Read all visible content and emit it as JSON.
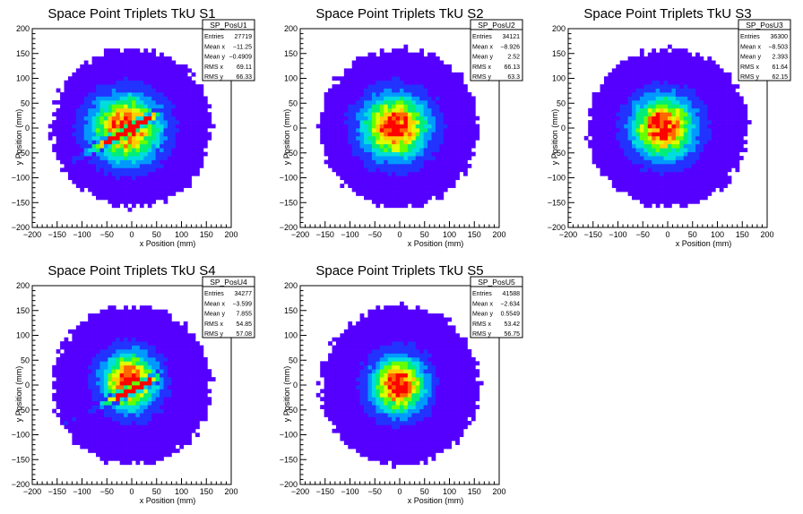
{
  "chart_data": [
    {
      "type": "heatmap",
      "title": "Space Point Triplets TkU S1",
      "xlabel": "x Position (mm)",
      "ylabel": "y Position (mm)",
      "xlim": [
        -200,
        200
      ],
      "ylim": [
        -200,
        200
      ],
      "xticks": [
        "−200",
        "−150",
        "−100",
        "−50",
        "0",
        "50",
        "100",
        "150",
        "200"
      ],
      "yticks": [
        "−200",
        "−150",
        "−100",
        "−50",
        "0",
        "50",
        "100",
        "150",
        "200"
      ],
      "stats": {
        "name": "SP_PosU1",
        "rows": [
          {
            "label": "Entries",
            "value": "27719"
          },
          {
            "label": "Mean x",
            "value": "−11.25"
          },
          {
            "label": "Mean y",
            "value": "−0.4909"
          },
          {
            "label": "RMS x",
            "value": "69.11"
          },
          {
            "label": "RMS y",
            "value": "66.33"
          }
        ]
      },
      "entries": 27719,
      "mean_x": -11.25,
      "mean_y": -0.4909,
      "rms_x": 69.11,
      "rms_y": 66.33,
      "radius": 160,
      "stripe": {
        "slope": 0.55,
        "offset": 0
      }
    },
    {
      "type": "heatmap",
      "title": "Space Point Triplets TkU S2",
      "xlabel": "x Position (mm)",
      "ylabel": "y Position (mm)",
      "xlim": [
        -200,
        200
      ],
      "ylim": [
        -200,
        200
      ],
      "xticks": [
        "−200",
        "−150",
        "−100",
        "−50",
        "0",
        "50",
        "100",
        "150",
        "200"
      ],
      "yticks": [
        "−200",
        "−150",
        "−100",
        "−50",
        "0",
        "50",
        "100",
        "150",
        "200"
      ],
      "stats": {
        "name": "SP_PosU2",
        "rows": [
          {
            "label": "Entries",
            "value": "34121"
          },
          {
            "label": "Mean x",
            "value": "−8.926"
          },
          {
            "label": "Mean y",
            "value": "2.52"
          },
          {
            "label": "RMS x",
            "value": "66.13"
          },
          {
            "label": "RMS y",
            "value": "63.3"
          }
        ]
      },
      "entries": 34121,
      "mean_x": -8.926,
      "mean_y": 2.52,
      "rms_x": 66.13,
      "rms_y": 63.3,
      "radius": 160
    },
    {
      "type": "heatmap",
      "title": "Space Point Triplets TkU S3",
      "xlabel": "x Position (mm)",
      "ylabel": "y Position (mm)",
      "xlim": [
        -200,
        200
      ],
      "ylim": [
        -200,
        200
      ],
      "xticks": [
        "−200",
        "−150",
        "−100",
        "−50",
        "0",
        "50",
        "100",
        "150",
        "200"
      ],
      "yticks": [
        "−200",
        "−150",
        "−100",
        "−50",
        "0",
        "50",
        "100",
        "150",
        "200"
      ],
      "stats": {
        "name": "SP_PosU3",
        "rows": [
          {
            "label": "Entries",
            "value": "36300"
          },
          {
            "label": "Mean x",
            "value": "−8.503"
          },
          {
            "label": "Mean y",
            "value": "2.393"
          },
          {
            "label": "RMS x",
            "value": "61.64"
          },
          {
            "label": "RMS y",
            "value": "62.15"
          }
        ]
      },
      "entries": 36300,
      "mean_x": -8.503,
      "mean_y": 2.393,
      "rms_x": 61.64,
      "rms_y": 62.15,
      "radius": 160
    },
    {
      "type": "heatmap",
      "title": "Space Point Triplets TkU S4",
      "xlabel": "x Position (mm)",
      "ylabel": "y Position (mm)",
      "xlim": [
        -200,
        200
      ],
      "ylim": [
        -200,
        200
      ],
      "xticks": [
        "−200",
        "−150",
        "−100",
        "−50",
        "0",
        "50",
        "100",
        "150",
        "200"
      ],
      "yticks": [
        "−200",
        "−150",
        "−100",
        "−50",
        "0",
        "50",
        "100",
        "150",
        "200"
      ],
      "stats": {
        "name": "SP_PosU4",
        "rows": [
          {
            "label": "Entries",
            "value": "34277"
          },
          {
            "label": "Mean x",
            "value": "−3.599"
          },
          {
            "label": "Mean y",
            "value": "7.855"
          },
          {
            "label": "RMS x",
            "value": "54.85"
          },
          {
            "label": "RMS y",
            "value": "57.08"
          }
        ]
      },
      "entries": 34277,
      "mean_x": -3.599,
      "mean_y": 7.855,
      "rms_x": 54.85,
      "rms_y": 57.08,
      "radius": 160,
      "stripe": {
        "slope": 0.5,
        "offset": -10
      }
    },
    {
      "type": "heatmap",
      "title": "Space Point Triplets TkU S5",
      "xlabel": "x Position (mm)",
      "ylabel": "y Position (mm)",
      "xlim": [
        -200,
        200
      ],
      "ylim": [
        -200,
        200
      ],
      "xticks": [
        "−200",
        "−150",
        "−100",
        "−50",
        "0",
        "50",
        "100",
        "150",
        "200"
      ],
      "yticks": [
        "−200",
        "−150",
        "−100",
        "−50",
        "0",
        "50",
        "100",
        "150",
        "200"
      ],
      "stats": {
        "name": "SP_PosU5",
        "rows": [
          {
            "label": "Entries",
            "value": "41588"
          },
          {
            "label": "Mean x",
            "value": "−2.634"
          },
          {
            "label": "Mean y",
            "value": "0.5549"
          },
          {
            "label": "RMS x",
            "value": "53.42"
          },
          {
            "label": "RMS y",
            "value": "56.75"
          }
        ]
      },
      "entries": 41588,
      "mean_x": -2.634,
      "mean_y": 0.5549,
      "rms_x": 53.42,
      "rms_y": 56.75,
      "radius": 160
    }
  ],
  "colors": {
    "palette": [
      "#5500ff",
      "#2233ff",
      "#0099ff",
      "#00dddd",
      "#00ee77",
      "#66ff00",
      "#ddff00",
      "#ffcc00",
      "#ff6600",
      "#ff0000"
    ],
    "axis": "#000000",
    "background": "#ffffff"
  }
}
